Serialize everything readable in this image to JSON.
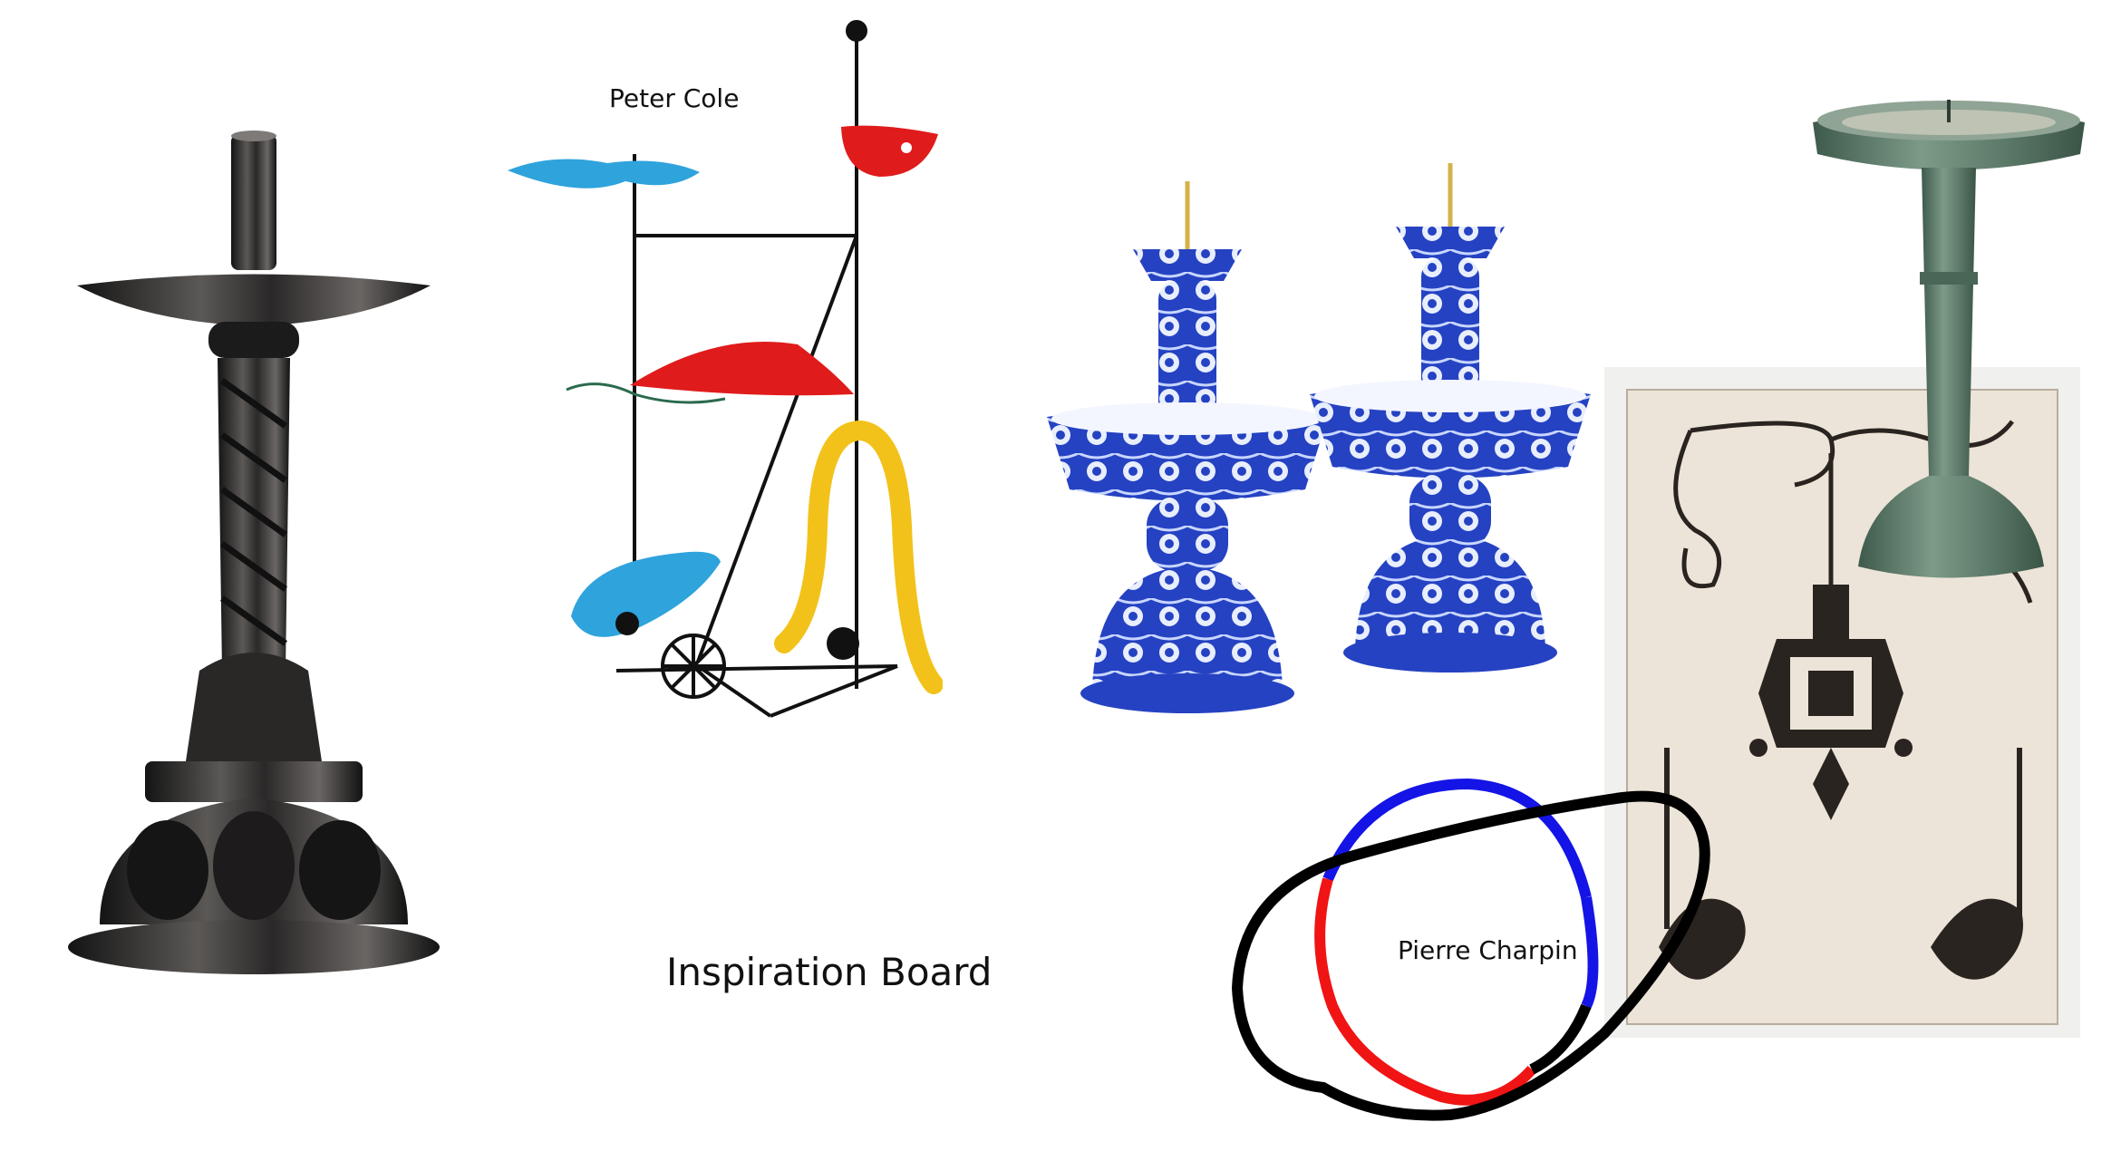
{
  "board": {
    "title": "Inspiration Board"
  },
  "labels": {
    "peter_cole": "Peter Cole",
    "pierre_charpin": "Pierre Charpin"
  },
  "colors": {
    "background": "#ffffff",
    "silver_dark": "#2b2a2a",
    "mobile_blue": "#2fa3dc",
    "mobile_red": "#e01b1b",
    "mobile_yellow": "#f2c21a",
    "porcelain_blue": "#1e3fb0",
    "bronze_green": "#5f7f70",
    "engraving_paper": "#ece4d8",
    "ring_blue": "#1414e6",
    "ring_red": "#f01414",
    "ring_black": "#000000"
  }
}
